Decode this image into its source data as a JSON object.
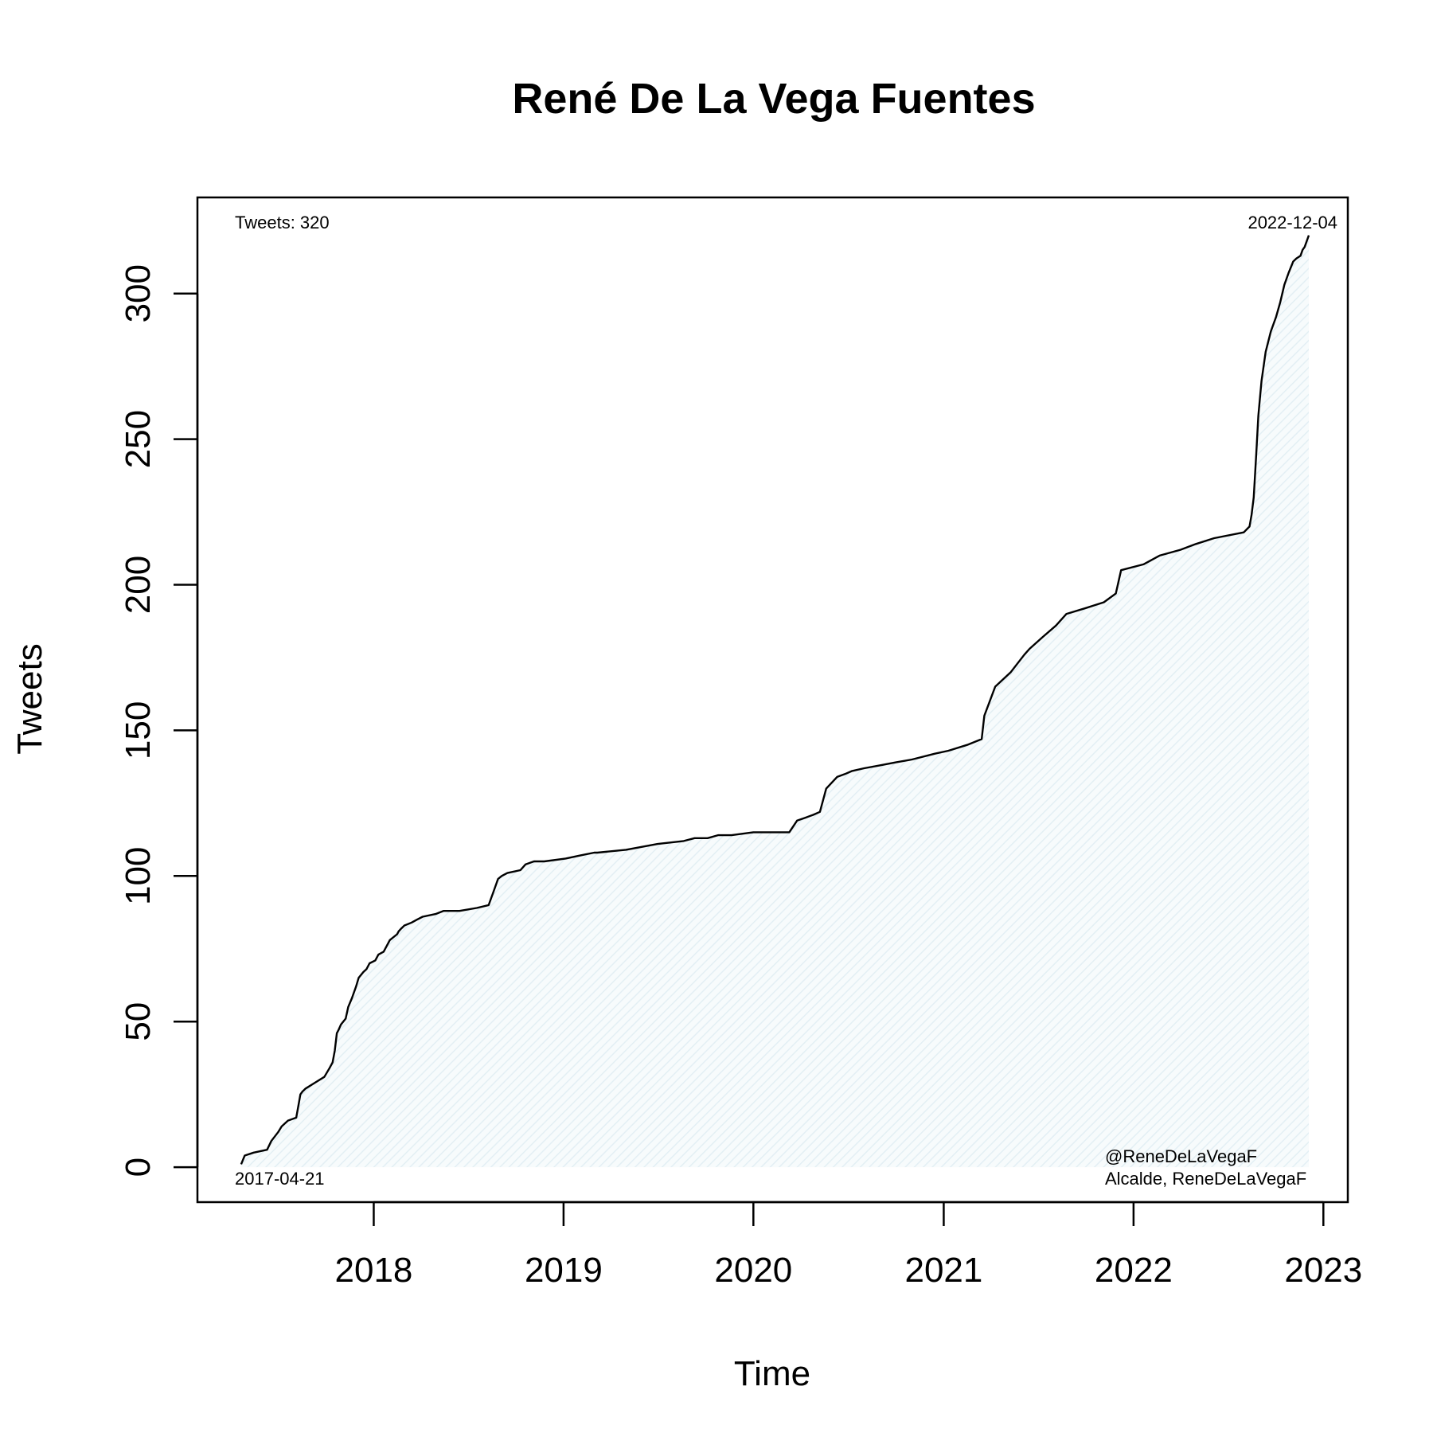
{
  "chart_data": {
    "type": "area",
    "title": "René De La Vega Fuentes",
    "xlabel": "Time",
    "ylabel": "Tweets",
    "xlim": [
      "2017-01-27",
      "2023-02-17"
    ],
    "ylim": [
      -12,
      333
    ],
    "x_ticks": [
      {
        "value": "2018-01-01",
        "label": "2018"
      },
      {
        "value": "2019-01-01",
        "label": "2019"
      },
      {
        "value": "2020-01-01",
        "label": "2020"
      },
      {
        "value": "2021-01-01",
        "label": "2021"
      },
      {
        "value": "2022-01-01",
        "label": "2022"
      },
      {
        "value": "2023-01-01",
        "label": "2023"
      }
    ],
    "y_ticks": [
      {
        "value": 0,
        "label": "0"
      },
      {
        "value": 50,
        "label": "50"
      },
      {
        "value": 100,
        "label": "100"
      },
      {
        "value": 150,
        "label": "150"
      },
      {
        "value": 200,
        "label": "200"
      },
      {
        "value": 250,
        "label": "250"
      },
      {
        "value": 300,
        "label": "300"
      }
    ],
    "grid": false,
    "fill_color": "#eef5f8",
    "line_color": "#000000",
    "series": [
      {
        "x": [
          "2017-04-21",
          "2017-04-28",
          "2017-05-15",
          "2017-06-10",
          "2017-06-18",
          "2017-07-01",
          "2017-07-08",
          "2017-07-20",
          "2017-08-05",
          "2017-08-10",
          "2017-08-13",
          "2017-08-17",
          "2017-08-23",
          "2017-09-10",
          "2017-09-28",
          "2017-10-08",
          "2017-10-14",
          "2017-10-18",
          "2017-10-22",
          "2017-10-25",
          "2017-10-30",
          "2017-11-08",
          "2017-11-13",
          "2017-11-20",
          "2017-11-28",
          "2017-12-03",
          "2017-12-12",
          "2017-12-18",
          "2017-12-24",
          "2018-01-04",
          "2018-01-10",
          "2018-01-20",
          "2018-02-01",
          "2018-02-15",
          "2018-02-18",
          "2018-02-23",
          "2018-03-01",
          "2018-03-15",
          "2018-03-25",
          "2018-04-05",
          "2018-05-01",
          "2018-05-15",
          "2018-06-15",
          "2018-07-18",
          "2018-08-10",
          "2018-08-20",
          "2018-08-28",
          "2018-09-04",
          "2018-09-15",
          "2018-10-10",
          "2018-10-20",
          "2018-11-05",
          "2018-11-25",
          "2019-01-05",
          "2019-02-01",
          "2019-03-01",
          "2019-03-07",
          "2019-05-01",
          "2019-07-01",
          "2019-08-20",
          "2019-09-10",
          "2019-10-05",
          "2019-10-25",
          "2019-11-20",
          "2020-01-01",
          "2020-03-10",
          "2020-03-25",
          "2020-04-10",
          "2020-04-25",
          "2020-05-08",
          "2020-05-20",
          "2020-06-10",
          "2020-06-25",
          "2020-07-08",
          "2020-08-01",
          "2020-09-01",
          "2020-10-01",
          "2020-11-01",
          "2020-12-15",
          "2021-01-10",
          "2021-02-15",
          "2021-03-15",
          "2021-03-20",
          "2021-04-10",
          "2021-05-10",
          "2021-06-05",
          "2021-06-15",
          "2021-07-10",
          "2021-08-05",
          "2021-08-25",
          "2021-10-01",
          "2021-11-05",
          "2021-11-28",
          "2021-12-08",
          "2022-01-20",
          "2022-02-20",
          "2022-04-01",
          "2022-05-01",
          "2022-06-05",
          "2022-08-01",
          "2022-08-12",
          "2022-08-16",
          "2022-08-20",
          "2022-08-25",
          "2022-08-29",
          "2022-09-04",
          "2022-09-12",
          "2022-09-22",
          "2022-10-02",
          "2022-10-10",
          "2022-10-18",
          "2022-10-26",
          "2022-11-04",
          "2022-11-10",
          "2022-11-18",
          "2022-11-22",
          "2022-11-26",
          "2022-12-04"
        ],
        "y": [
          1,
          4,
          5,
          6,
          9,
          12,
          14,
          16,
          17,
          22,
          25,
          26,
          27,
          29,
          31,
          34,
          36,
          40,
          46,
          47,
          49,
          51,
          55,
          58,
          62,
          65,
          67,
          68,
          70,
          71,
          73,
          74,
          78,
          80,
          81,
          82,
          83,
          84,
          85,
          86,
          87,
          88,
          88,
          89,
          90,
          95,
          99,
          100,
          101,
          102,
          104,
          105,
          105,
          106,
          107,
          108,
          108,
          109,
          111,
          112,
          113,
          113,
          114,
          114,
          115,
          115,
          119,
          120,
          121,
          122,
          130,
          134,
          135,
          136,
          137,
          138,
          139,
          140,
          142,
          143,
          145,
          147,
          155,
          165,
          170,
          176,
          178,
          182,
          186,
          190,
          192,
          194,
          197,
          205,
          207,
          210,
          212,
          214,
          216,
          218,
          220,
          224,
          230,
          245,
          258,
          270,
          280,
          287,
          292,
          297,
          303,
          307,
          311,
          312,
          313,
          315,
          316,
          320
        ]
      }
    ],
    "annotations": {
      "total": "Tweets: 320",
      "start_date": "2017-04-21",
      "end_date": "2022-12-04",
      "handle": "@ReneDeLaVegaF",
      "description": "Alcalde, ReneDeLaVegaF"
    }
  }
}
